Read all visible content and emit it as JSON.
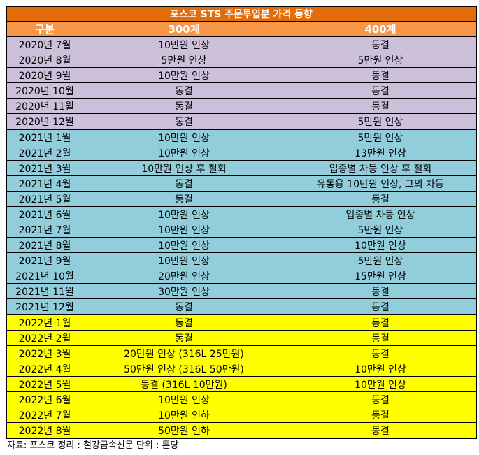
{
  "title": "포스코 STS 주문투입분 가격 동향",
  "headers": [
    "구분",
    "300계",
    "400계"
  ],
  "colors": {
    "title_bg": "#E36C0A",
    "header_bg": "#F79646",
    "2020": "#CCC0DA",
    "2021": "#92CDDC",
    "2022": "#FFFF00"
  },
  "rows": [
    {
      "g": "2020",
      "period": "2020년 7월",
      "s300": "10만원 인상",
      "s400": "동결"
    },
    {
      "g": "2020",
      "period": "2020년 8월",
      "s300": "5만원 인상",
      "s400": "5만원 인상"
    },
    {
      "g": "2020",
      "period": "2020년 9월",
      "s300": "10만원 인상",
      "s400": "동결"
    },
    {
      "g": "2020",
      "period": "2020년 10월",
      "s300": "동결",
      "s400": "동결"
    },
    {
      "g": "2020",
      "period": "2020년 11월",
      "s300": "동결",
      "s400": "동결"
    },
    {
      "g": "2020",
      "period": "2020년 12월",
      "s300": "동결",
      "s400": "5만원 인상"
    },
    {
      "g": "2021",
      "period": "2021년 1월",
      "s300": "10만원 인상",
      "s400": "5만원 인상"
    },
    {
      "g": "2021",
      "period": "2021년 2월",
      "s300": "10만원 인상",
      "s400": "13만원 인상"
    },
    {
      "g": "2021",
      "period": "2021년 3월",
      "s300": "10만원 인상 후 철회",
      "s400": "업종별 차등 인상 후 철회"
    },
    {
      "g": "2021",
      "period": "2021년 4월",
      "s300": "동결",
      "s400": "유통용 10만원 인상, 그외 차등"
    },
    {
      "g": "2021",
      "period": "2021년 5월",
      "s300": "동결",
      "s400": "동결"
    },
    {
      "g": "2021",
      "period": "2021년 6월",
      "s300": "10만원 인상",
      "s400": "업종별 차등 인상"
    },
    {
      "g": "2021",
      "period": "2021년 7월",
      "s300": "10만원 인상",
      "s400": "5만원 인상"
    },
    {
      "g": "2021",
      "period": "2021년 8월",
      "s300": "10만원 인상",
      "s400": "10만원 인상"
    },
    {
      "g": "2021",
      "period": "2021년 9월",
      "s300": "10만원 인상",
      "s400": "5만원 인상"
    },
    {
      "g": "2021",
      "period": "2021년 10월",
      "s300": "20만원 인상",
      "s400": "15만원 인상"
    },
    {
      "g": "2021",
      "period": "2021년 11월",
      "s300": "30만원 인상",
      "s400": "동결"
    },
    {
      "g": "2021",
      "period": "2021년 12월",
      "s300": "동결",
      "s400": "동결"
    },
    {
      "g": "2022",
      "period": "2022년 1월",
      "s300": "동결",
      "s400": "동결"
    },
    {
      "g": "2022",
      "period": "2022년 2월",
      "s300": "동결",
      "s400": "동결"
    },
    {
      "g": "2022",
      "period": "2022년 3월",
      "s300": "20만원 인상 (316L 25만원)",
      "s400": "동결"
    },
    {
      "g": "2022",
      "period": "2022년 4월",
      "s300": "50만원 인상 (316L 50만원)",
      "s400": "10만원 인상"
    },
    {
      "g": "2022",
      "period": "2022년 5월",
      "s300": "동결 (316L 10만원)",
      "s400": "10만원 인상"
    },
    {
      "g": "2022",
      "period": "2022년 6월",
      "s300": "10만원 인상",
      "s400": "동결"
    },
    {
      "g": "2022",
      "period": "2022년 7월",
      "s300": "10만원 인하",
      "s400": "동결"
    },
    {
      "g": "2022",
      "period": "2022년 8월",
      "s300": "50만원 인하",
      "s400": "동결"
    }
  ],
  "footnote": "자료: 포스코 정리 : 철강금속신문   단위 : 톤당"
}
